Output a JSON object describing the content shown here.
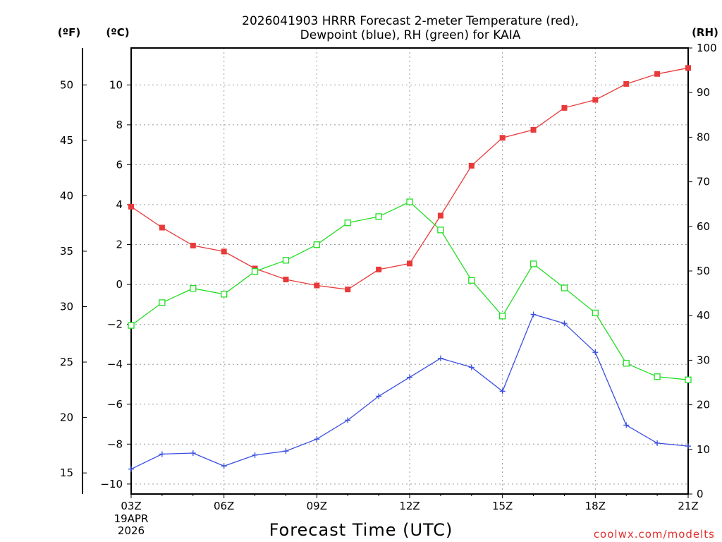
{
  "chart_data": {
    "type": "line",
    "title_line1": "2026041903 HRRR Forecast 2-meter Temperature (red),",
    "title_line2": "Dewpoint (blue), RH (green) for KAIA",
    "xlabel": "Forecast Time (UTC)",
    "credit": "coolwx.com/modelts",
    "unit_f": "(ºF)",
    "unit_c": "(ºC)",
    "unit_rh": "(RH)",
    "date_line1": "19APR",
    "date_line2": "2026",
    "x_hours": [
      3,
      4,
      5,
      6,
      7,
      8,
      9,
      10,
      11,
      12,
      13,
      14,
      15,
      16,
      17,
      18,
      19,
      20,
      21
    ],
    "xticks": [
      3,
      6,
      9,
      12,
      15,
      18,
      21
    ],
    "xtick_labels": [
      "03Z",
      "06Z",
      "09Z",
      "12Z",
      "15Z",
      "18Z",
      "21Z"
    ],
    "c_range": [
      -10.5,
      11.85
    ],
    "c_ticks": [
      -10,
      -8,
      -6,
      -4,
      -2,
      0,
      2,
      4,
      6,
      8,
      10
    ],
    "c_tick_labels": [
      "−10",
      "−8",
      "−6",
      "−4",
      "−2",
      "0",
      "2",
      "4",
      "6",
      "8",
      "10"
    ],
    "f_ticks": [
      15,
      20,
      25,
      30,
      35,
      40,
      45,
      50
    ],
    "f_tick_labels": [
      "15",
      "20",
      "25",
      "30",
      "35",
      "40",
      "45",
      "50"
    ],
    "rh_range": [
      0,
      100
    ],
    "rh_ticks": [
      0,
      10,
      20,
      30,
      40,
      50,
      60,
      70,
      80,
      90,
      100
    ],
    "rh_tick_labels": [
      "0",
      "10",
      "20",
      "30",
      "40",
      "50",
      "60",
      "70",
      "80",
      "90",
      "100"
    ],
    "series": [
      {
        "name": "Temperature",
        "axis": "c",
        "color": "#e83a3a",
        "marker": "filled-square",
        "values": [
          3.9,
          2.85,
          1.95,
          1.65,
          0.8,
          0.25,
          -0.05,
          -0.25,
          0.75,
          1.05,
          3.45,
          5.95,
          7.35,
          7.75,
          8.85,
          9.25,
          10.05,
          10.55,
          10.85
        ]
      },
      {
        "name": "Dewpoint",
        "axis": "c",
        "color": "#3a4ee0",
        "marker": "plus",
        "values": [
          -9.25,
          -8.5,
          -8.45,
          -9.1,
          -8.55,
          -8.35,
          -7.75,
          -6.8,
          -5.6,
          -4.65,
          -3.7,
          -4.15,
          -5.35,
          -1.5,
          -1.95,
          -3.4,
          -7.05,
          -7.95,
          -8.1
        ]
      },
      {
        "name": "RH",
        "axis": "rh",
        "color": "#22dd22",
        "marker": "open-square",
        "values": [
          37.8,
          42.9,
          46.1,
          44.8,
          49.9,
          52.4,
          55.9,
          60.8,
          62.2,
          65.5,
          59.2,
          47.9,
          39.9,
          51.6,
          46.2,
          40.6,
          29.3,
          26.3,
          25.6
        ]
      }
    ]
  }
}
